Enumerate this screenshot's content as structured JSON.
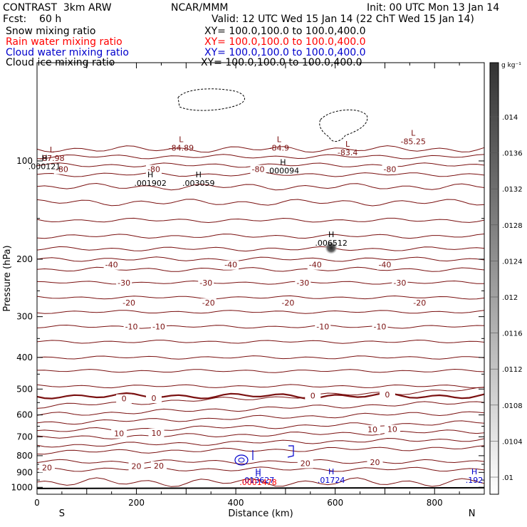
{
  "header": {
    "model": "CONTRAST  3km ARW",
    "org": "NCAR/MMM",
    "init": "Init: 00 UTC Mon 13 Jan 14",
    "fcst": "Fcst:    60 h",
    "valid": "Valid: 12 UTC Wed 15 Jan 14 (22 ChT Wed 15 Jan 14)",
    "fields": [
      {
        "label": "Snow mixing ratio",
        "xy": "XY= 100.0,100.0 to 100.0,400.0",
        "color": "#000000"
      },
      {
        "label": "Rain water mixing ratio",
        "xy": "XY= 100.0,100.0 to 100.0,400.0",
        "color": "#ff0000"
      },
      {
        "label": "Cloud water mixing ratio",
        "xy": "XY= 100.0,100.0 to 100.0,400.0",
        "color": "#0000cc"
      },
      {
        "label": "Cloud ice mixing ratio",
        "xy": "XY= 100.0,100.0 to 100.0,400.0",
        "color": "#000000"
      }
    ]
  },
  "colorbar": {
    "units": "g kg⁻¹",
    "ticks": [
      ".01",
      ".0104",
      ".0108",
      ".0112",
      ".0116",
      ".012",
      ".0124",
      ".0128",
      ".0132",
      ".0136",
      ".014"
    ]
  },
  "colors": {
    "temperature_contour": "#7a1010",
    "cloud_water": "#0000cc",
    "rain": "#ff0000",
    "ice": "#000000"
  },
  "chart_data": {
    "type": "line",
    "xlabel": "Distance (km)",
    "ylabel": "Pressure (hPa)",
    "xlim": [
      0,
      900
    ],
    "ylim": [
      1050,
      50
    ],
    "xticks": [
      0,
      200,
      400,
      600,
      800
    ],
    "yticks": [
      100,
      200,
      300,
      400,
      500,
      600,
      700,
      800,
      900,
      1000
    ],
    "y_scale": "log",
    "x_end_labels": {
      "left": "S",
      "right": "N"
    },
    "isotherms": [
      {
        "level": -80,
        "labels": [
          {
            "x": 50,
            "text": "-80"
          },
          {
            "x": 235,
            "text": "-80"
          },
          {
            "x": 445,
            "text": "-80"
          },
          {
            "x": 710,
            "text": "-80"
          }
        ]
      },
      {
        "level": -40,
        "labels": [
          {
            "x": 150,
            "text": "-40"
          },
          {
            "x": 390,
            "text": "-40"
          },
          {
            "x": 560,
            "text": "-40"
          },
          {
            "x": 700,
            "text": "-40"
          }
        ]
      },
      {
        "level": -30,
        "labels": [
          {
            "x": 175,
            "text": "-30"
          },
          {
            "x": 340,
            "text": "-30"
          },
          {
            "x": 535,
            "text": "-30"
          },
          {
            "x": 730,
            "text": "-30"
          }
        ]
      },
      {
        "level": -20,
        "labels": [
          {
            "x": 185,
            "text": "-20"
          },
          {
            "x": 345,
            "text": "-20"
          },
          {
            "x": 505,
            "text": "-20"
          },
          {
            "x": 770,
            "text": "-20"
          }
        ]
      },
      {
        "level": -10,
        "labels": [
          {
            "x": 190,
            "text": "-10"
          },
          {
            "x": 245,
            "text": "-10"
          },
          {
            "x": 575,
            "text": "-10"
          },
          {
            "x": 690,
            "text": "-10"
          }
        ]
      },
      {
        "level": 0,
        "labels": [
          {
            "x": 175,
            "text": "0"
          },
          {
            "x": 235,
            "text": "0"
          },
          {
            "x": 555,
            "text": "0"
          },
          {
            "x": 705,
            "text": "0"
          }
        ]
      },
      {
        "level": 10,
        "labels": [
          {
            "x": 165,
            "text": "10"
          },
          {
            "x": 240,
            "text": "10"
          },
          {
            "x": 675,
            "text": "10"
          },
          {
            "x": 715,
            "text": "10"
          }
        ]
      },
      {
        "level": 20,
        "labels": [
          {
            "x": 20,
            "text": "20"
          },
          {
            "x": 200,
            "text": "20"
          },
          {
            "x": 245,
            "text": "20"
          },
          {
            "x": 540,
            "text": "20"
          },
          {
            "x": 680,
            "text": "20"
          }
        ]
      }
    ],
    "extrema": [
      {
        "type": "L",
        "x": 30,
        "p": 99,
        "value": "-87.98",
        "field": "temperature"
      },
      {
        "type": "L",
        "x": 290,
        "p": 92,
        "value": "-84.89",
        "field": "temperature"
      },
      {
        "type": "L",
        "x": 487,
        "p": 92,
        "value": "-84.9",
        "field": "temperature"
      },
      {
        "type": "L",
        "x": 625,
        "p": 95,
        "value": "-83.4",
        "field": "temperature"
      },
      {
        "type": "L",
        "x": 757,
        "p": 88,
        "value": "-85.25",
        "field": "temperature"
      },
      {
        "type": "H",
        "x": 15,
        "p": 105,
        "value": ".000121",
        "field": "ice"
      },
      {
        "type": "H",
        "x": 228,
        "p": 118,
        "value": ".001902",
        "field": "ice"
      },
      {
        "type": "H",
        "x": 325,
        "p": 118,
        "value": ".003059",
        "field": "ice"
      },
      {
        "type": "H",
        "x": 495,
        "p": 108,
        "value": ".000094",
        "field": "ice"
      },
      {
        "type": "H",
        "x": 592,
        "p": 180,
        "value": ".006512",
        "field": "ice"
      },
      {
        "type": "H",
        "x": 445,
        "p": 960,
        "value": ".013627",
        "field": "cloud_water"
      },
      {
        "type": "H",
        "x": 445,
        "p": 975,
        "value": ".0001478",
        "field": "rain"
      },
      {
        "type": "H",
        "x": 592,
        "p": 960,
        "value": ".01724",
        "field": "cloud_water"
      },
      {
        "type": "H",
        "x": 880,
        "p": 960,
        "value": ".192",
        "field": "cloud_water"
      }
    ]
  }
}
